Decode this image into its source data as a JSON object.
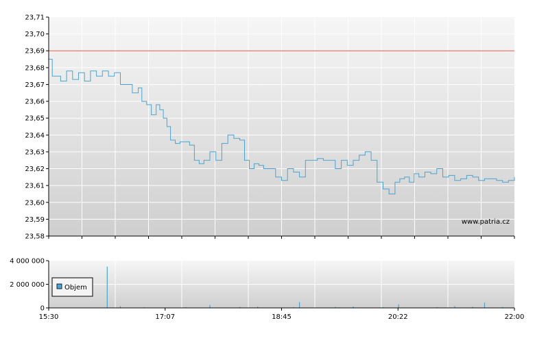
{
  "watermark": "www.patria.cz",
  "legend_label": "Objem",
  "colors": {
    "price_line": "#4aa3d0",
    "reference_line": "#e05a4a",
    "volume": "#4aa3d0",
    "background_top": "#f6f6f6",
    "background_bottom": "#cfcfcf",
    "grid": "#ffffff",
    "axis": "#000000"
  },
  "chart_data": [
    {
      "type": "line",
      "title": "",
      "ylim": [
        23.58,
        23.71
      ],
      "y_ticks": [
        "23,71",
        "23,70",
        "23,69",
        "23,68",
        "23,67",
        "23,66",
        "23,65",
        "23,64",
        "23,63",
        "23,62",
        "23,61",
        "23,60",
        "23,59",
        "23,58"
      ],
      "x_range_minutes": [
        930,
        1320
      ],
      "reference_line": 23.69,
      "grid": true,
      "series": [
        {
          "x": [
            "15:30",
            "15:33",
            "15:36",
            "15:40",
            "15:45",
            "15:50",
            "15:55",
            "16:00",
            "16:05",
            "16:10",
            "16:15",
            "16:20",
            "16:25",
            "16:30",
            "16:35",
            "16:40",
            "16:45",
            "16:48",
            "16:52",
            "16:56",
            "17:00",
            "17:03",
            "17:06",
            "17:09",
            "17:12",
            "17:16",
            "17:20",
            "17:24",
            "17:28",
            "17:32",
            "17:36",
            "17:40",
            "17:45",
            "17:50",
            "17:55",
            "18:00",
            "18:05",
            "18:10",
            "18:14",
            "18:18",
            "18:22",
            "18:26",
            "18:30",
            "18:35",
            "18:40",
            "18:45",
            "18:50",
            "18:55",
            "19:00",
            "19:05",
            "19:10",
            "19:15",
            "19:20",
            "19:25",
            "19:30",
            "19:35",
            "19:40",
            "19:45",
            "19:50",
            "19:55",
            "20:00",
            "20:05",
            "20:10",
            "20:15",
            "20:20",
            "20:24",
            "20:28",
            "20:32",
            "20:36",
            "20:40",
            "20:45",
            "20:50",
            "20:55",
            "21:00",
            "21:05",
            "21:10",
            "21:15",
            "21:20",
            "21:25",
            "21:30",
            "21:35",
            "21:40",
            "21:45",
            "21:50",
            "21:55",
            "22:00"
          ],
          "values": [
            23.685,
            23.675,
            23.675,
            23.672,
            23.678,
            23.673,
            23.677,
            23.672,
            23.678,
            23.675,
            23.678,
            23.675,
            23.677,
            23.67,
            23.67,
            23.665,
            23.668,
            23.66,
            23.658,
            23.652,
            23.658,
            23.655,
            23.65,
            23.645,
            23.637,
            23.635,
            23.636,
            23.636,
            23.634,
            23.625,
            23.623,
            23.625,
            23.63,
            23.625,
            23.635,
            23.64,
            23.638,
            23.637,
            23.625,
            23.62,
            23.623,
            23.622,
            23.62,
            23.62,
            23.615,
            23.613,
            23.62,
            23.618,
            23.615,
            23.625,
            23.625,
            23.626,
            23.625,
            23.625,
            23.62,
            23.625,
            23.622,
            23.625,
            23.628,
            23.63,
            23.625,
            23.612,
            23.608,
            23.605,
            23.612,
            23.614,
            23.615,
            23.612,
            23.617,
            23.615,
            23.618,
            23.617,
            23.62,
            23.615,
            23.616,
            23.613,
            23.614,
            23.616,
            23.615,
            23.613,
            23.614,
            23.614,
            23.613,
            23.612,
            23.613,
            23.615
          ]
        }
      ]
    },
    {
      "type": "bar",
      "title": "",
      "ylim": [
        0,
        4000000
      ],
      "y_ticks": [
        "4 000 000",
        "2 000 000",
        "0"
      ],
      "x_ticks": [
        "15:30",
        "17:07",
        "18:45",
        "20:22",
        "22:00"
      ],
      "x_range_minutes": [
        930,
        1320
      ],
      "grid": true,
      "series": [
        {
          "name": "Objem",
          "x": [
            "16:19",
            "16:30",
            "16:50",
            "17:25",
            "17:45",
            "18:10",
            "18:25",
            "18:55",
            "19:00",
            "19:30",
            "19:45",
            "20:10",
            "20:23",
            "20:55",
            "21:10",
            "21:25",
            "21:35",
            "21:50"
          ],
          "values": [
            3500000,
            150000,
            50000,
            60000,
            250000,
            80000,
            100000,
            60000,
            500000,
            80000,
            120000,
            60000,
            300000,
            60000,
            150000,
            90000,
            450000,
            70000
          ]
        }
      ]
    }
  ]
}
